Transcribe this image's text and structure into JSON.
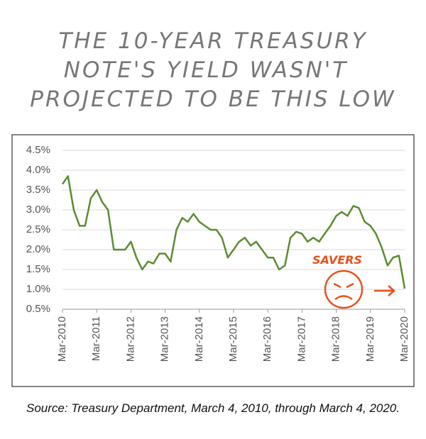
{
  "chart_data": {
    "type": "line",
    "title": [
      "THE 10-YEAR TREASURY",
      "NOTE'S YIELD WASN'T",
      "PROJECTED TO BE THIS LOW"
    ],
    "source": "Source: Treasury Department, March 4, 2010, through March 4, 2020.",
    "annotation": "SAVERS",
    "x": [
      2010.17,
      2010.33,
      2010.5,
      2010.67,
      2010.83,
      2011.0,
      2011.17,
      2011.33,
      2011.5,
      2011.67,
      2011.83,
      2012.0,
      2012.17,
      2012.33,
      2012.5,
      2012.67,
      2012.83,
      2013.0,
      2013.17,
      2013.33,
      2013.5,
      2013.67,
      2013.83,
      2014.0,
      2014.17,
      2014.33,
      2014.5,
      2014.67,
      2014.83,
      2015.0,
      2015.17,
      2015.33,
      2015.5,
      2015.67,
      2015.83,
      2016.0,
      2016.17,
      2016.33,
      2016.5,
      2016.67,
      2016.83,
      2017.0,
      2017.17,
      2017.33,
      2017.5,
      2017.67,
      2017.83,
      2018.0,
      2018.17,
      2018.33,
      2018.5,
      2018.67,
      2018.83,
      2019.0,
      2019.17,
      2019.33,
      2019.5,
      2019.67,
      2019.83,
      2020.0,
      2020.17
    ],
    "series": [
      {
        "color": "#5b8c32",
        "values": [
          3.65,
          3.85,
          3.0,
          2.6,
          2.6,
          3.3,
          3.5,
          3.2,
          3.0,
          2.0,
          2.0,
          2.0,
          2.2,
          1.8,
          1.5,
          1.7,
          1.65,
          1.9,
          1.9,
          1.7,
          2.5,
          2.8,
          2.7,
          2.9,
          2.7,
          2.6,
          2.5,
          2.5,
          2.3,
          1.8,
          2.0,
          2.2,
          2.3,
          2.1,
          2.2,
          2.0,
          1.8,
          1.8,
          1.5,
          1.6,
          2.3,
          2.45,
          2.4,
          2.2,
          2.3,
          2.2,
          2.4,
          2.6,
          2.85,
          2.95,
          2.85,
          3.1,
          3.05,
          2.7,
          2.6,
          2.4,
          2.05,
          1.6,
          1.8,
          1.85,
          1.02
        ]
      }
    ],
    "xlim": [
      2010.17,
      2020.17
    ],
    "xticks": [
      {
        "value": 2010.17,
        "label": "Mar-2010"
      },
      {
        "value": 2011.17,
        "label": "Mar-2011"
      },
      {
        "value": 2012.17,
        "label": "Mar-2012"
      },
      {
        "value": 2013.17,
        "label": "Mar-2013"
      },
      {
        "value": 2014.17,
        "label": "Mar-2014"
      },
      {
        "value": 2015.17,
        "label": "Mar-2015"
      },
      {
        "value": 2016.17,
        "label": "Mar-2016"
      },
      {
        "value": 2017.17,
        "label": "Mar-2017"
      },
      {
        "value": 2018.17,
        "label": "Mar-2018"
      },
      {
        "value": 2019.17,
        "label": "Mar-2019"
      },
      {
        "value": 2020.17,
        "label": "Mar-2020"
      }
    ],
    "ylim": [
      0.5,
      4.5
    ],
    "yticks": [
      {
        "value": 0.5,
        "label": "0.5%"
      },
      {
        "value": 1.0,
        "label": "1.0%"
      },
      {
        "value": 1.5,
        "label": "1.5%"
      },
      {
        "value": 2.0,
        "label": "2.0%"
      },
      {
        "value": 2.5,
        "label": "2.5%"
      },
      {
        "value": 3.0,
        "label": "3.0%"
      },
      {
        "value": 3.5,
        "label": "3.5%"
      },
      {
        "value": 4.0,
        "label": "4.0%"
      },
      {
        "value": 4.5,
        "label": "4.5%"
      }
    ],
    "grid": true
  }
}
